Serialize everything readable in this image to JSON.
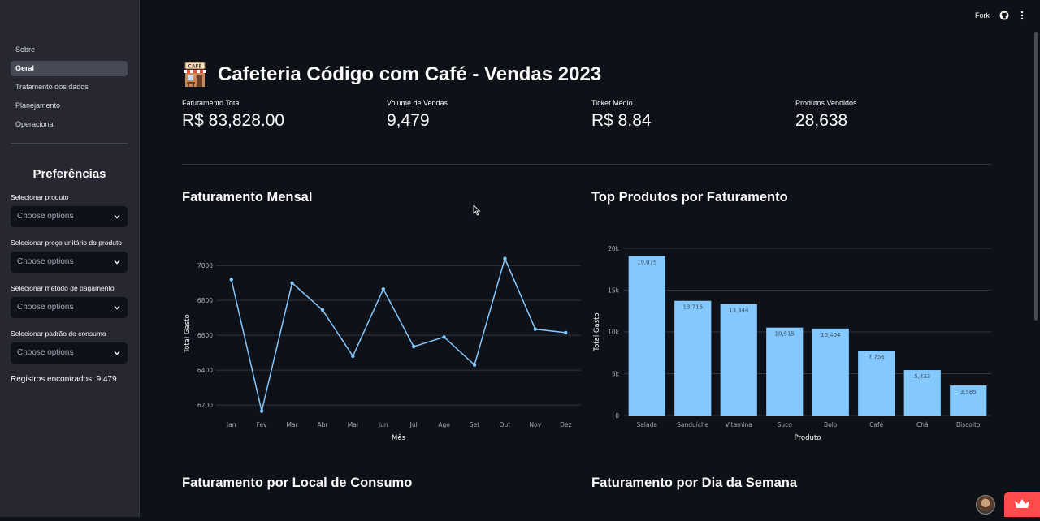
{
  "sidebar": {
    "nav": [
      "Sobre",
      "Geral",
      "Tratamento dos dados",
      "Planejamento",
      "Operacional"
    ],
    "active_nav": "Geral",
    "preferences_title": "Preferências",
    "filters": [
      {
        "label": "Selecionar produto",
        "placeholder": "Choose options"
      },
      {
        "label": "Selecionar preço unitário do produto",
        "placeholder": "Choose options"
      },
      {
        "label": "Selecionar método de pagamento",
        "placeholder": "Choose options"
      },
      {
        "label": "Selecionar padrão de consumo",
        "placeholder": "Choose options"
      }
    ],
    "records": "Registros encontrados: 9,479"
  },
  "topbar": {
    "fork_label": "Fork"
  },
  "header": {
    "title": "Cafeteria Código com Café - Vendas 2023",
    "icon": "cafe-storefront-icon"
  },
  "metrics": [
    {
      "label": "Faturamento Total",
      "value": "R$ 83,828.00"
    },
    {
      "label": "Volume de Vendas",
      "value": "9,479"
    },
    {
      "label": "Ticket Médio",
      "value": "R$ 8.84"
    },
    {
      "label": "Produtos Vendidos",
      "value": "28,638"
    }
  ],
  "sections": {
    "monthly": "Faturamento Mensal",
    "top_products": "Top Produtos por Faturamento",
    "by_location": "Faturamento por Local de Consumo",
    "by_weekday": "Faturamento por Dia da Semana"
  },
  "colors": {
    "series": "#83c9ff",
    "accent": "#ff4b4b",
    "background": "#0e1117",
    "sidebar": "#262730"
  },
  "chart_data": [
    {
      "type": "line",
      "title": "Faturamento Mensal",
      "xlabel": "Mês",
      "ylabel": "Total Gasto",
      "x": [
        "Jan",
        "Fev",
        "Mar",
        "Abr",
        "Mai",
        "Jun",
        "Jul",
        "Ago",
        "Set",
        "Out",
        "Nov",
        "Dez"
      ],
      "values": [
        6920,
        6165,
        6900,
        6745,
        6480,
        6865,
        6535,
        6590,
        6430,
        7040,
        6635,
        6615
      ],
      "yticks": [
        6200,
        6400,
        6600,
        6800,
        7000
      ],
      "ylim": [
        6140,
        7080
      ],
      "grid": true
    },
    {
      "type": "bar",
      "title": "Top Produtos por Faturamento",
      "xlabel": "Produto",
      "ylabel": "Total Gasto",
      "categories": [
        "Salada",
        "Sanduíche",
        "Vitamina",
        "Suco",
        "Bolo",
        "Café",
        "Chá",
        "Biscoito"
      ],
      "values": [
        19075,
        13716,
        13344,
        10515,
        10404,
        7756,
        5433,
        3585
      ],
      "value_labels": [
        "19,075",
        "13,716",
        "13,344",
        "10,515",
        "10,404",
        "7,756",
        "5,433",
        "3,585"
      ],
      "yticks": [
        0,
        5000,
        10000,
        15000,
        20000
      ],
      "ytick_labels": [
        "0",
        "5k",
        "10k",
        "15k",
        "20k"
      ],
      "ylim": [
        0,
        20000
      ],
      "grid": true
    }
  ]
}
